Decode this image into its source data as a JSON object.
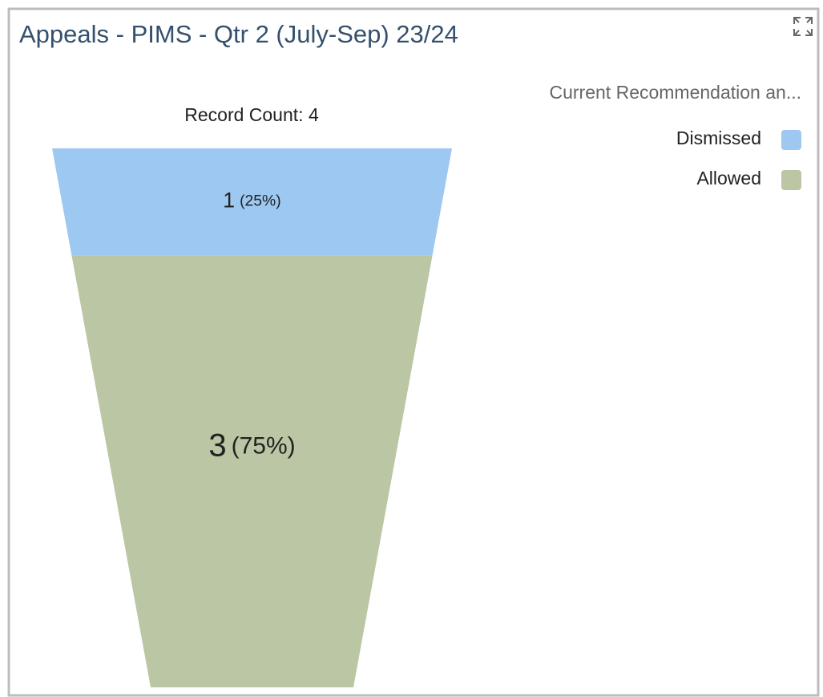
{
  "chart_data": {
    "type": "funnel",
    "title": "Appeals - PIMS - Qtr 2 (July-Sep) 23/24",
    "subtitle": "Record Count: 4",
    "legend_title": "Current Recommendation an...",
    "legend": "top-right",
    "series": [
      {
        "name": "Dismissed",
        "color": "#9cc8f2"
      },
      {
        "name": "Allowed",
        "color": "#bac6a4"
      }
    ],
    "categories": [
      "Dismissed",
      "Allowed"
    ],
    "values": [
      1,
      3
    ],
    "percent_labels": [
      "(25%)",
      "(75%)"
    ]
  }
}
